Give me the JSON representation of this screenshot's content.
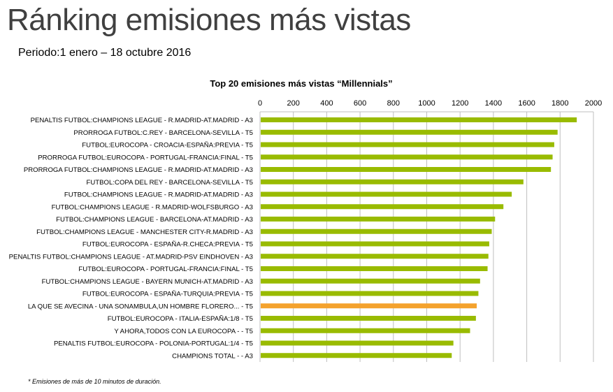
{
  "header": {
    "title": "Ránking emisiones más vistas",
    "period": "Periodo:1 enero – 18 octubre 2016"
  },
  "footnote": "* Emisiones de más de 10 minutos de duración.",
  "colors": {
    "bar": "#99bb00",
    "highlight": "#f4a22d",
    "grid": "#bfbfbf",
    "text": "#000000"
  },
  "chart_data": {
    "type": "bar",
    "orientation": "horizontal",
    "title": "Top 20 emisiones más vistas “Millennials”",
    "xlim": [
      0,
      2000
    ],
    "x_ticks": [
      "0",
      "200",
      "400",
      "600",
      "800",
      "1000",
      "1200",
      "1400",
      "1600",
      "1800",
      "2000"
    ],
    "x_axis_position": "top",
    "grid": true,
    "legend": "none",
    "highlight_index": 15,
    "categories": [
      "PENALTIS FUTBOL:CHAMPIONS LEAGUE - R.MADRID-AT.MADRID - A3",
      "PRORROGA FUTBOL:C.REY - BARCELONA-SEVILLA - T5",
      "FUTBOL:EUROCOPA - CROACIA-ESPAÑA:PREVIA - T5",
      "PRORROGA FUTBOL:EUROCOPA - PORTUGAL-FRANCIA:FINAL - T5",
      "PRORROGA FUTBOL:CHAMPIONS LEAGUE - R.MADRID-AT.MADRID - A3",
      "FUTBOL:COPA DEL REY - BARCELONA-SEVILLA - T5",
      "FUTBOL:CHAMPIONS LEAGUE - R.MADRID-AT.MADRID - A3",
      "FUTBOL:CHAMPIONS LEAGUE - R.MADRID-WOLFSBURGO - A3",
      "FUTBOL:CHAMPIONS LEAGUE - BARCELONA-AT.MADRID - A3",
      "FUTBOL:CHAMPIONS LEAGUE - MANCHESTER CITY-R.MADRID - A3",
      "FUTBOL:EUROCOPA - ESPAÑA-R.CHECA:PREVIA - T5",
      "PENALTIS FUTBOL:CHAMPIONS LEAGUE - AT.MADRID-PSV EINDHOVEN - A3",
      "FUTBOL:EUROCOPA - PORTUGAL-FRANCIA:FINAL - T5",
      "FUTBOL:CHAMPIONS LEAGUE - BAYERN MUNICH-AT.MADRID - A3",
      "FUTBOL:EUROCOPA - ESPAÑA-TURQUIA:PREVIA - T5",
      "LA QUE SE AVECINA - UNA SONAMBULA,UN HOMBRE FLORERO... - T5",
      "FUTBOL:EUROCOPA - ITALIA-ESPAÑA:1/8 - T5",
      "Y AHORA,TODOS CON LA EUROCOPA -   - T5",
      "PENALTIS FUTBOL:EUROCOPA - POLONIA-PORTUGAL:1/4 - T5",
      "CHAMPIONS TOTAL -   - A3"
    ],
    "values": [
      1900,
      1785,
      1765,
      1755,
      1745,
      1580,
      1510,
      1460,
      1410,
      1390,
      1375,
      1370,
      1365,
      1320,
      1310,
      1300,
      1295,
      1260,
      1160,
      1150
    ]
  }
}
